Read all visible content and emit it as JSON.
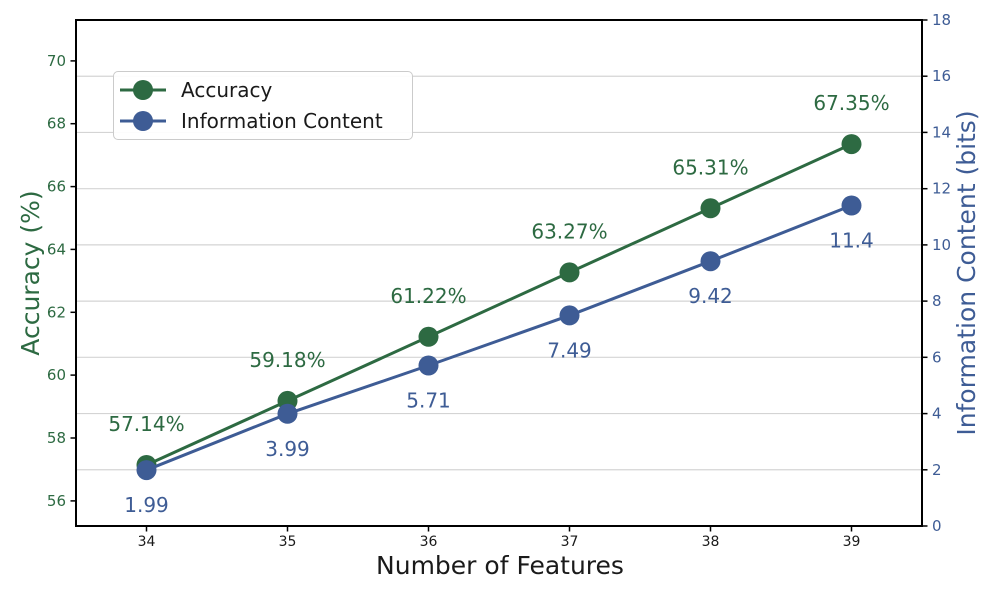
{
  "figure": {
    "background": "#ffffff",
    "colors": {
      "accuracy_green": "#2d6a42",
      "information_blue": "#3e5c95",
      "grid_color": "#d4d4d4",
      "spine_color": "#000000",
      "x_tick_label_color": "#1a1a1a",
      "legend_border": "#cbcbcb"
    }
  },
  "chart_data": {
    "type": "line",
    "title": "",
    "xlabel": "Number of Features",
    "x": [
      34,
      35,
      36,
      37,
      38,
      39
    ],
    "x_tick_labels": [
      "34",
      "35",
      "36",
      "37",
      "38",
      "39"
    ],
    "xlim": [
      33.5,
      39.5
    ],
    "axes": {
      "left": {
        "label": "Accuracy (%)",
        "color": "#2d6a42",
        "tick_values": [
          56,
          58,
          60,
          62,
          64,
          66,
          68,
          70
        ],
        "tick_labels": [
          "56",
          "58",
          "60",
          "62",
          "64",
          "66",
          "68",
          "70"
        ],
        "lim": [
          55.2,
          71.3
        ],
        "grid": false
      },
      "right": {
        "label": "Information Content (bits)",
        "color": "#3e5c95",
        "tick_values": [
          0,
          2,
          4,
          6,
          8,
          10,
          12,
          14,
          16,
          18
        ],
        "tick_labels": [
          "0",
          "2",
          "4",
          "6",
          "8",
          "10",
          "12",
          "14",
          "16",
          "18"
        ],
        "lim": [
          0,
          18
        ],
        "grid": true
      }
    },
    "series": [
      {
        "name": "Accuracy",
        "axis": "left",
        "color": "#2d6a42",
        "values": [
          57.14,
          59.18,
          61.22,
          63.27,
          65.31,
          67.35
        ],
        "point_labels": [
          "57.14%",
          "59.18%",
          "61.22%",
          "63.27%",
          "65.31%",
          "67.35%"
        ],
        "label_side": "above"
      },
      {
        "name": "Information Content",
        "axis": "right",
        "color": "#3e5c95",
        "values": [
          1.99,
          3.99,
          5.71,
          7.49,
          9.42,
          11.4
        ],
        "point_labels": [
          "1.99",
          "3.99",
          "5.71",
          "7.49",
          "9.42",
          "11.4"
        ],
        "label_side": "below"
      }
    ],
    "legend": {
      "position": "upper left",
      "items": [
        "Accuracy",
        "Information Content"
      ]
    },
    "grid": "horizontal gridlines at right-axis ticks"
  }
}
